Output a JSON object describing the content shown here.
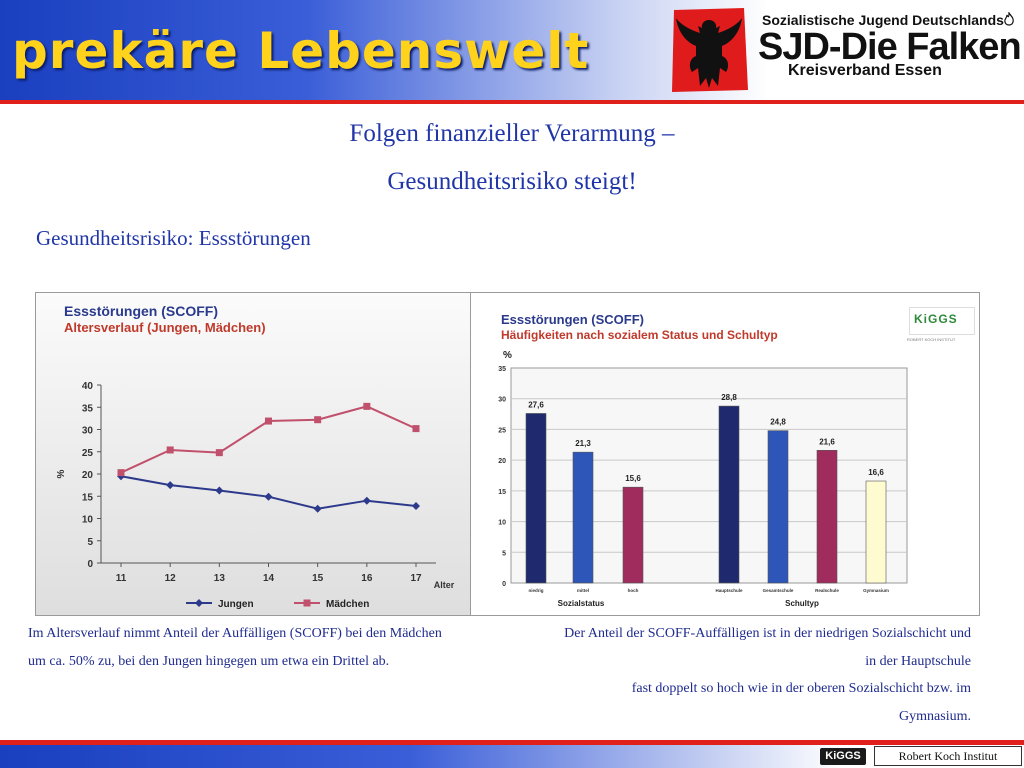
{
  "header": {
    "title": "prekäre Lebenswelt",
    "org_line1": "Sozialistische Jugend Deutschlands",
    "org_line2": "SJD-Die Falken",
    "org_line3": "Kreisverband Essen"
  },
  "slide": {
    "heading_line1": "Folgen finanzieller Verarmung –",
    "heading_line2": "Gesundheitsrisiko steigt!",
    "subheading": "Gesundheitsrisiko: Essstörungen"
  },
  "chart_data": [
    {
      "type": "line",
      "title": "Essstörungen (SCOFF)",
      "subtitle": "Altersverlauf (Jungen, Mädchen)",
      "xlabel": "Alter",
      "ylabel": "%",
      "categories": [
        "11",
        "12",
        "13",
        "14",
        "15",
        "16",
        "17"
      ],
      "ylim": [
        0,
        40
      ],
      "yticks": [
        0,
        5,
        10,
        15,
        20,
        25,
        30,
        35,
        40
      ],
      "grid": false,
      "legend_position": "bottom",
      "series": [
        {
          "name": "Jungen",
          "color": "#2d3a8c",
          "values": [
            19.5,
            17.5,
            16.3,
            14.9,
            12.2,
            14.0,
            12.8
          ]
        },
        {
          "name": "Mädchen",
          "color": "#c0506c",
          "values": [
            20.3,
            25.4,
            24.8,
            31.9,
            32.2,
            35.2,
            30.2
          ]
        }
      ]
    },
    {
      "type": "bar",
      "title": "Essstörungen (SCOFF)",
      "subtitle": "Häufigkeiten nach sozialem Status und Schultyp",
      "ylabel": "%",
      "ylim": [
        0,
        35
      ],
      "yticks": [
        0,
        5,
        10,
        15,
        20,
        25,
        30,
        35
      ],
      "grid": true,
      "groups": [
        {
          "label": "Sozialstatus",
          "categories": [
            "niedrig",
            "mittel",
            "hoch"
          ],
          "values": [
            27.6,
            21.3,
            15.6
          ],
          "value_labels": [
            "27,6",
            "21,3",
            "15,6"
          ],
          "colors": [
            "#1f2a6e",
            "#2d56b8",
            "#a02c5e"
          ]
        },
        {
          "label": "Schultyp",
          "categories": [
            "Hauptschule",
            "Gesamtschule",
            "Realschule",
            "Gymnasium"
          ],
          "values": [
            28.8,
            24.8,
            21.6,
            16.6
          ],
          "value_labels": [
            "28,8",
            "24,8",
            "21,6",
            "16,6"
          ],
          "colors": [
            "#1f2a6e",
            "#2d56b8",
            "#a02c5e",
            "#fffbd0"
          ]
        }
      ]
    }
  ],
  "badges": {
    "kiggs": "KiGGS",
    "rki_small": "ROBERT KOCH INSTITUT"
  },
  "captions": {
    "left": "Im Altersverlauf nimmt Anteil der Auffälligen (SCOFF) bei den Mädchen um ca. 50% zu, bei den Jungen hingegen um etwa ein Drittel ab.",
    "right_line1": "Der Anteil der SCOFF-Auffälligen ist in der niedrigen Sozialschicht und",
    "right_line2": "in der Hauptschule",
    "right_line3": "fast doppelt so hoch wie in der oberen Sozialschicht bzw. im",
    "right_line4": "Gymnasium."
  },
  "footer": {
    "logo": "KiGGS",
    "credit": "Robert Koch Institut"
  }
}
